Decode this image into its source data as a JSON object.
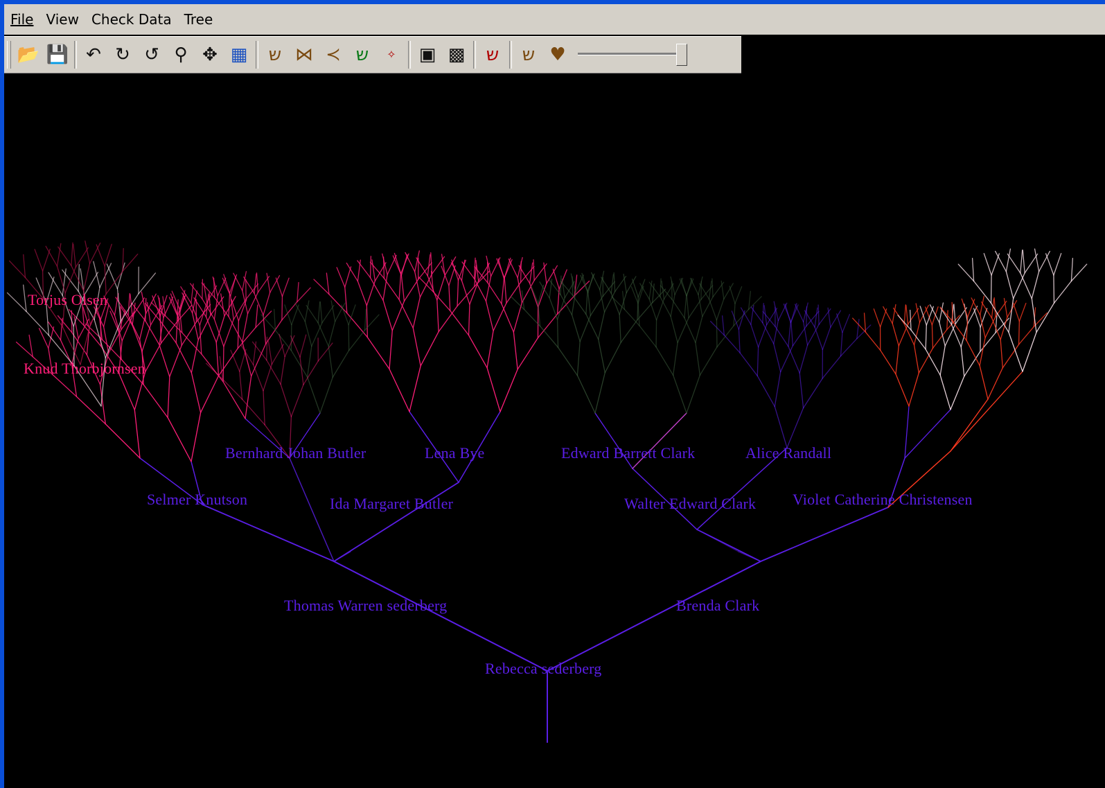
{
  "menu": {
    "file": "File",
    "view": "View",
    "check_data": "Check Data",
    "tree": "Tree"
  },
  "toolbar": {
    "zoom_level_fraction": 1.0,
    "icons": [
      "open-folder-icon",
      "save-icon",
      "rotate-left-icon",
      "rotate-right-icon",
      "reset-icon",
      "zoom-icon",
      "move-icon",
      "tree-layout-icon",
      "fan-tree-icon",
      "hourglass-icon",
      "pedigree-icon",
      "color-tree-icon",
      "smith-tree-icon",
      "archive-icon",
      "export-icon",
      "red-tree-icon",
      "descendant-icon",
      "heart-icon"
    ]
  },
  "tree": {
    "colors": {
      "ancestor_blue": "#5a1ee6",
      "paternal_pink": "#ff1e78",
      "maternal_red": "#ff3a20",
      "highlight_white": "#ffe8f0",
      "faded_green": "#3a5a3a"
    },
    "people": {
      "root": "Rebecca sederberg",
      "father": "Thomas Warren sederberg",
      "mother": "Brenda Clark",
      "paternal_grandfather": "Selmer Knutson",
      "paternal_grandmother": "Ida Margaret Butler",
      "maternal_grandfather": "Walter Edward Clark",
      "maternal_grandmother": "Violet Catherine Christensen",
      "gg1": "Bernhard Johan Butler",
      "gg2": "Lena Bye",
      "gg3": "Edward Barrett Clark",
      "gg4": "Alice Randall",
      "far1": "Torjus Olsen",
      "far2": "Knud Thorbjornsen"
    }
  }
}
